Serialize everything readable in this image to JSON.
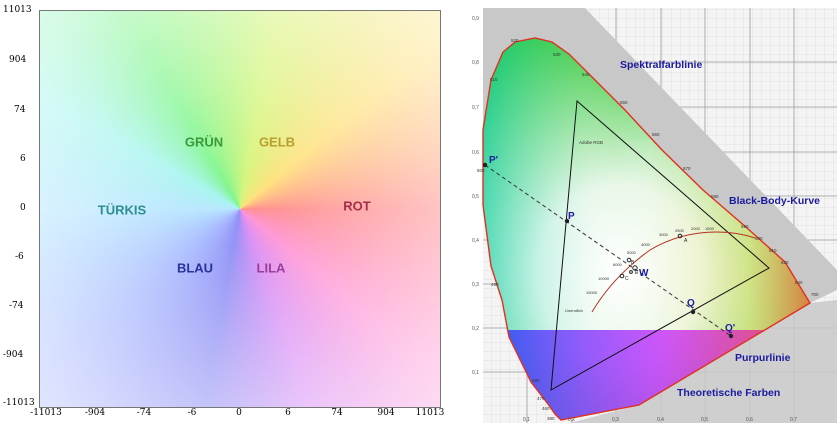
{
  "hue_panel": {
    "labels": {
      "gruen": "GRÜN",
      "gelb": "GELB",
      "tuerkis": "TÜRKIS",
      "rot": "ROT",
      "blau": "BLAU",
      "lila": "LILA"
    },
    "label_colors": {
      "gruen": "#3a9a3a",
      "gelb": "#b5a030",
      "tuerkis": "#2e8f8f",
      "rot": "#a32f4a",
      "blau": "#2a3399",
      "lila": "#9a3f9a"
    },
    "y_ticks": [
      "11013",
      "904",
      "74",
      "6",
      "0",
      "-6",
      "-74",
      "-904",
      "-11013"
    ],
    "x_ticks": [
      "-11013",
      "-904",
      "-74",
      "-6",
      "0",
      "6",
      "74",
      "904",
      "11013"
    ]
  },
  "cie_panel": {
    "y_ticks": [
      "0,9",
      "0,8",
      "0,7",
      "0,6",
      "0,5",
      "0,4",
      "0,3",
      "0,2",
      "0,1"
    ],
    "x_ticks": [
      "0,1",
      "0,2",
      "0,3",
      "0,4",
      "0,5",
      "0,6",
      "0,7"
    ],
    "labels": {
      "spektral": "Spektralfarblinie",
      "blackbody": "Black-Body-Kurve",
      "purpur": "Purpurlinie",
      "theoretisch": "Theoretische Farben",
      "adobe_rgb": "Adobe RGB"
    },
    "points": {
      "p_prime": "P'",
      "p": "P",
      "q": "Q",
      "q_prime": "Q'",
      "w": "W",
      "a": "A",
      "b": "B",
      "c": "C",
      "e": "E"
    },
    "wavelengths": [
      "520",
      "530",
      "540",
      "550",
      "560",
      "570",
      "580",
      "590",
      "600",
      "610",
      "620",
      "640",
      "700",
      "510",
      "500",
      "490",
      "480",
      "470",
      "460",
      "380"
    ],
    "temperatures": [
      "1500",
      "2000",
      "2500",
      "3000",
      "4000",
      "5000",
      "6000",
      "10000",
      "15000",
      "Unendlich"
    ],
    "colors": {
      "label_blue": "#1a1aa0",
      "locus_outline": "#e0301e",
      "theoretical_gray": "#c8c8c8"
    }
  }
}
